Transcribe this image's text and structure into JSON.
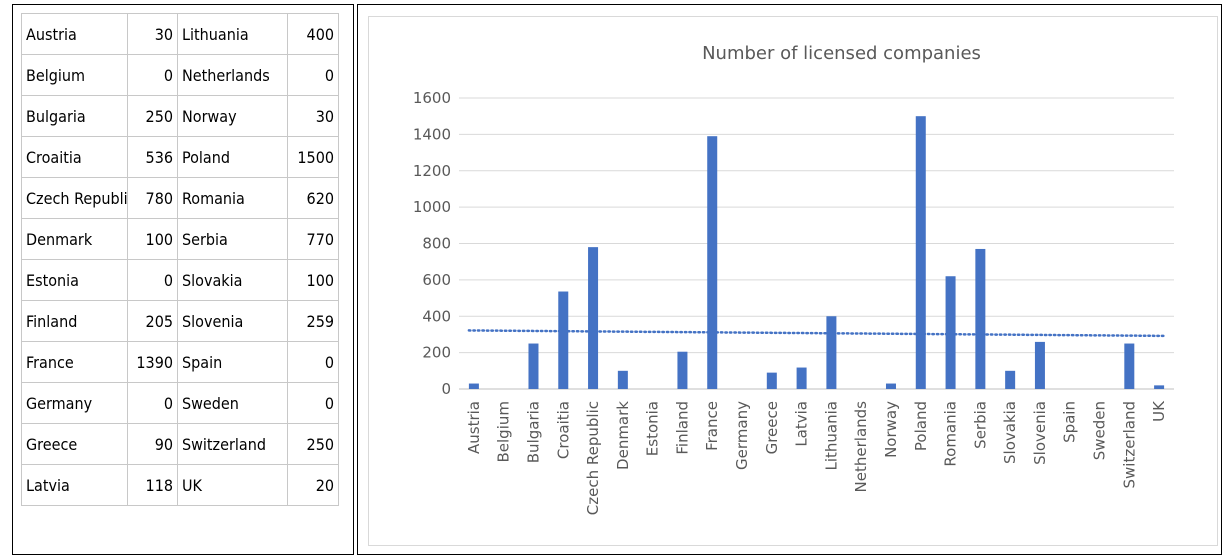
{
  "table": {
    "rows": [
      {
        "c1": "Austria",
        "v1": "30",
        "c2": "Lithuania",
        "v2": "400"
      },
      {
        "c1": "Belgium",
        "v1": "0",
        "c2": "Netherlands",
        "v2": "0"
      },
      {
        "c1": "Bulgaria",
        "v1": "250",
        "c2": "Norway",
        "v2": "30"
      },
      {
        "c1": "Croaitia",
        "v1": "536",
        "c2": "Poland",
        "v2": "1500"
      },
      {
        "c1": "Czech Republic",
        "v1": "780",
        "c2": "Romania",
        "v2": "620"
      },
      {
        "c1": "Denmark",
        "v1": "100",
        "c2": "Serbia",
        "v2": "770"
      },
      {
        "c1": "Estonia",
        "v1": "0",
        "c2": "Slovakia",
        "v2": "100"
      },
      {
        "c1": "Finland",
        "v1": "205",
        "c2": "Slovenia",
        "v2": "259"
      },
      {
        "c1": "France",
        "v1": "1390",
        "c2": "Spain",
        "v2": "0"
      },
      {
        "c1": "Germany",
        "v1": "0",
        "c2": "Sweden",
        "v2": "0"
      },
      {
        "c1": "Greece",
        "v1": "90",
        "c2": "Switzerland",
        "v2": "250"
      },
      {
        "c1": "Latvia",
        "v1": "118",
        "c2": "UK",
        "v2": "20"
      }
    ]
  },
  "chart_data": {
    "type": "bar",
    "title": "Number of licensed companies",
    "categories": [
      "Austria",
      "Belgium",
      "Bulgaria",
      "Croaitia",
      "Czech Republic",
      "Denmark",
      "Estonia",
      "Finland",
      "France",
      "Germany",
      "Greece",
      "Latvia",
      "Lithuania",
      "Netherlands",
      "Norway",
      "Poland",
      "Romania",
      "Serbia",
      "Slovakia",
      "Slovenia",
      "Spain",
      "Sweden",
      "Switzerland",
      "UK"
    ],
    "values": [
      30,
      0,
      250,
      536,
      780,
      100,
      0,
      205,
      1390,
      0,
      90,
      118,
      400,
      0,
      30,
      1500,
      620,
      770,
      100,
      259,
      0,
      0,
      250,
      20
    ],
    "yticks": [
      "0",
      "200",
      "400",
      "600",
      "800",
      "1000",
      "1200",
      "1400",
      "1600"
    ],
    "ylim": [
      0,
      1600
    ],
    "grid": true,
    "trendline": {
      "style": "dotted",
      "start": 322,
      "end": 292
    },
    "colors": {
      "bar": "#4472c4",
      "trend": "#4472c4",
      "grid": "#d9d9d9",
      "text": "#595959"
    }
  }
}
